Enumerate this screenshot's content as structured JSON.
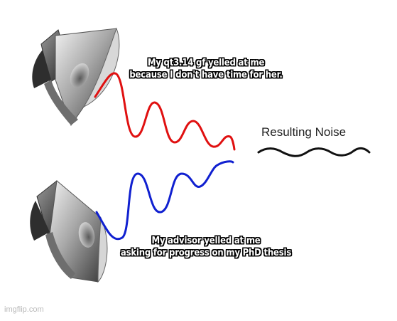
{
  "captions": {
    "top_line1": "My qt3.14 gf yelled at me",
    "top_line2": "because I don't have time for her.",
    "bottom_line1": "My advisor yelled at me",
    "bottom_line2": "asking for progress on my PhD thesis"
  },
  "result_label": "Resulting Noise",
  "watermark": "imgflip.com",
  "colors": {
    "wave_top": "#e01010",
    "wave_bottom": "#1020d0",
    "wave_result": "#111111"
  },
  "icons": {
    "speaker": "speaker-icon"
  }
}
